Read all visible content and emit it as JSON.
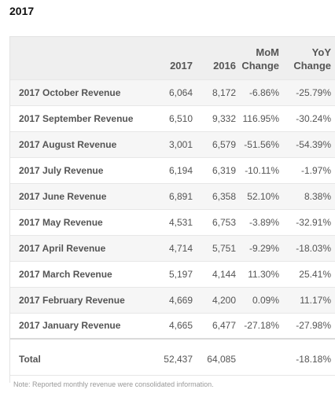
{
  "page": {
    "title": "2017"
  },
  "table": {
    "headers": {
      "label": "",
      "y2017": "2017",
      "y2016": "2016",
      "mom_line1": "MoM",
      "mom_line2": "Change",
      "yoy_line1": "YoY",
      "yoy_line2": "Change"
    },
    "rows": [
      {
        "label": "2017 October Revenue",
        "y2017": "6,064",
        "y2016": "8,172",
        "mom": "-6.86%",
        "yoy": "-25.79%"
      },
      {
        "label": "2017 September Revenue",
        "y2017": "6,510",
        "y2016": "9,332",
        "mom": "116.95%",
        "yoy": "-30.24%"
      },
      {
        "label": "2017 August Revenue",
        "y2017": "3,001",
        "y2016": "6,579",
        "mom": "-51.56%",
        "yoy": "-54.39%"
      },
      {
        "label": "2017 July Revenue",
        "y2017": "6,194",
        "y2016": "6,319",
        "mom": "-10.11%",
        "yoy": "-1.97%"
      },
      {
        "label": "2017 June Revenue",
        "y2017": "6,891",
        "y2016": "6,358",
        "mom": "52.10%",
        "yoy": "8.38%"
      },
      {
        "label": "2017 May Revenue",
        "y2017": "4,531",
        "y2016": "6,753",
        "mom": "-3.89%",
        "yoy": "-32.91%"
      },
      {
        "label": "2017 April Revenue",
        "y2017": "4,714",
        "y2016": "5,751",
        "mom": "-9.29%",
        "yoy": "-18.03%"
      },
      {
        "label": "2017 March Revenue",
        "y2017": "5,197",
        "y2016": "4,144",
        "mom": "11.30%",
        "yoy": "25.41%"
      },
      {
        "label": "2017 February Revenue",
        "y2017": "4,669",
        "y2016": "4,200",
        "mom": "0.09%",
        "yoy": "11.17%"
      },
      {
        "label": "2017 January Revenue",
        "y2017": "4,665",
        "y2016": "6,477",
        "mom": "-27.18%",
        "yoy": "-27.98%"
      }
    ],
    "total": {
      "label": "Total",
      "y2017": "52,437",
      "y2016": "64,085",
      "mom": "",
      "yoy": "-18.18%"
    },
    "note": "Note: Reported monthly revenue were consolidated information."
  }
}
